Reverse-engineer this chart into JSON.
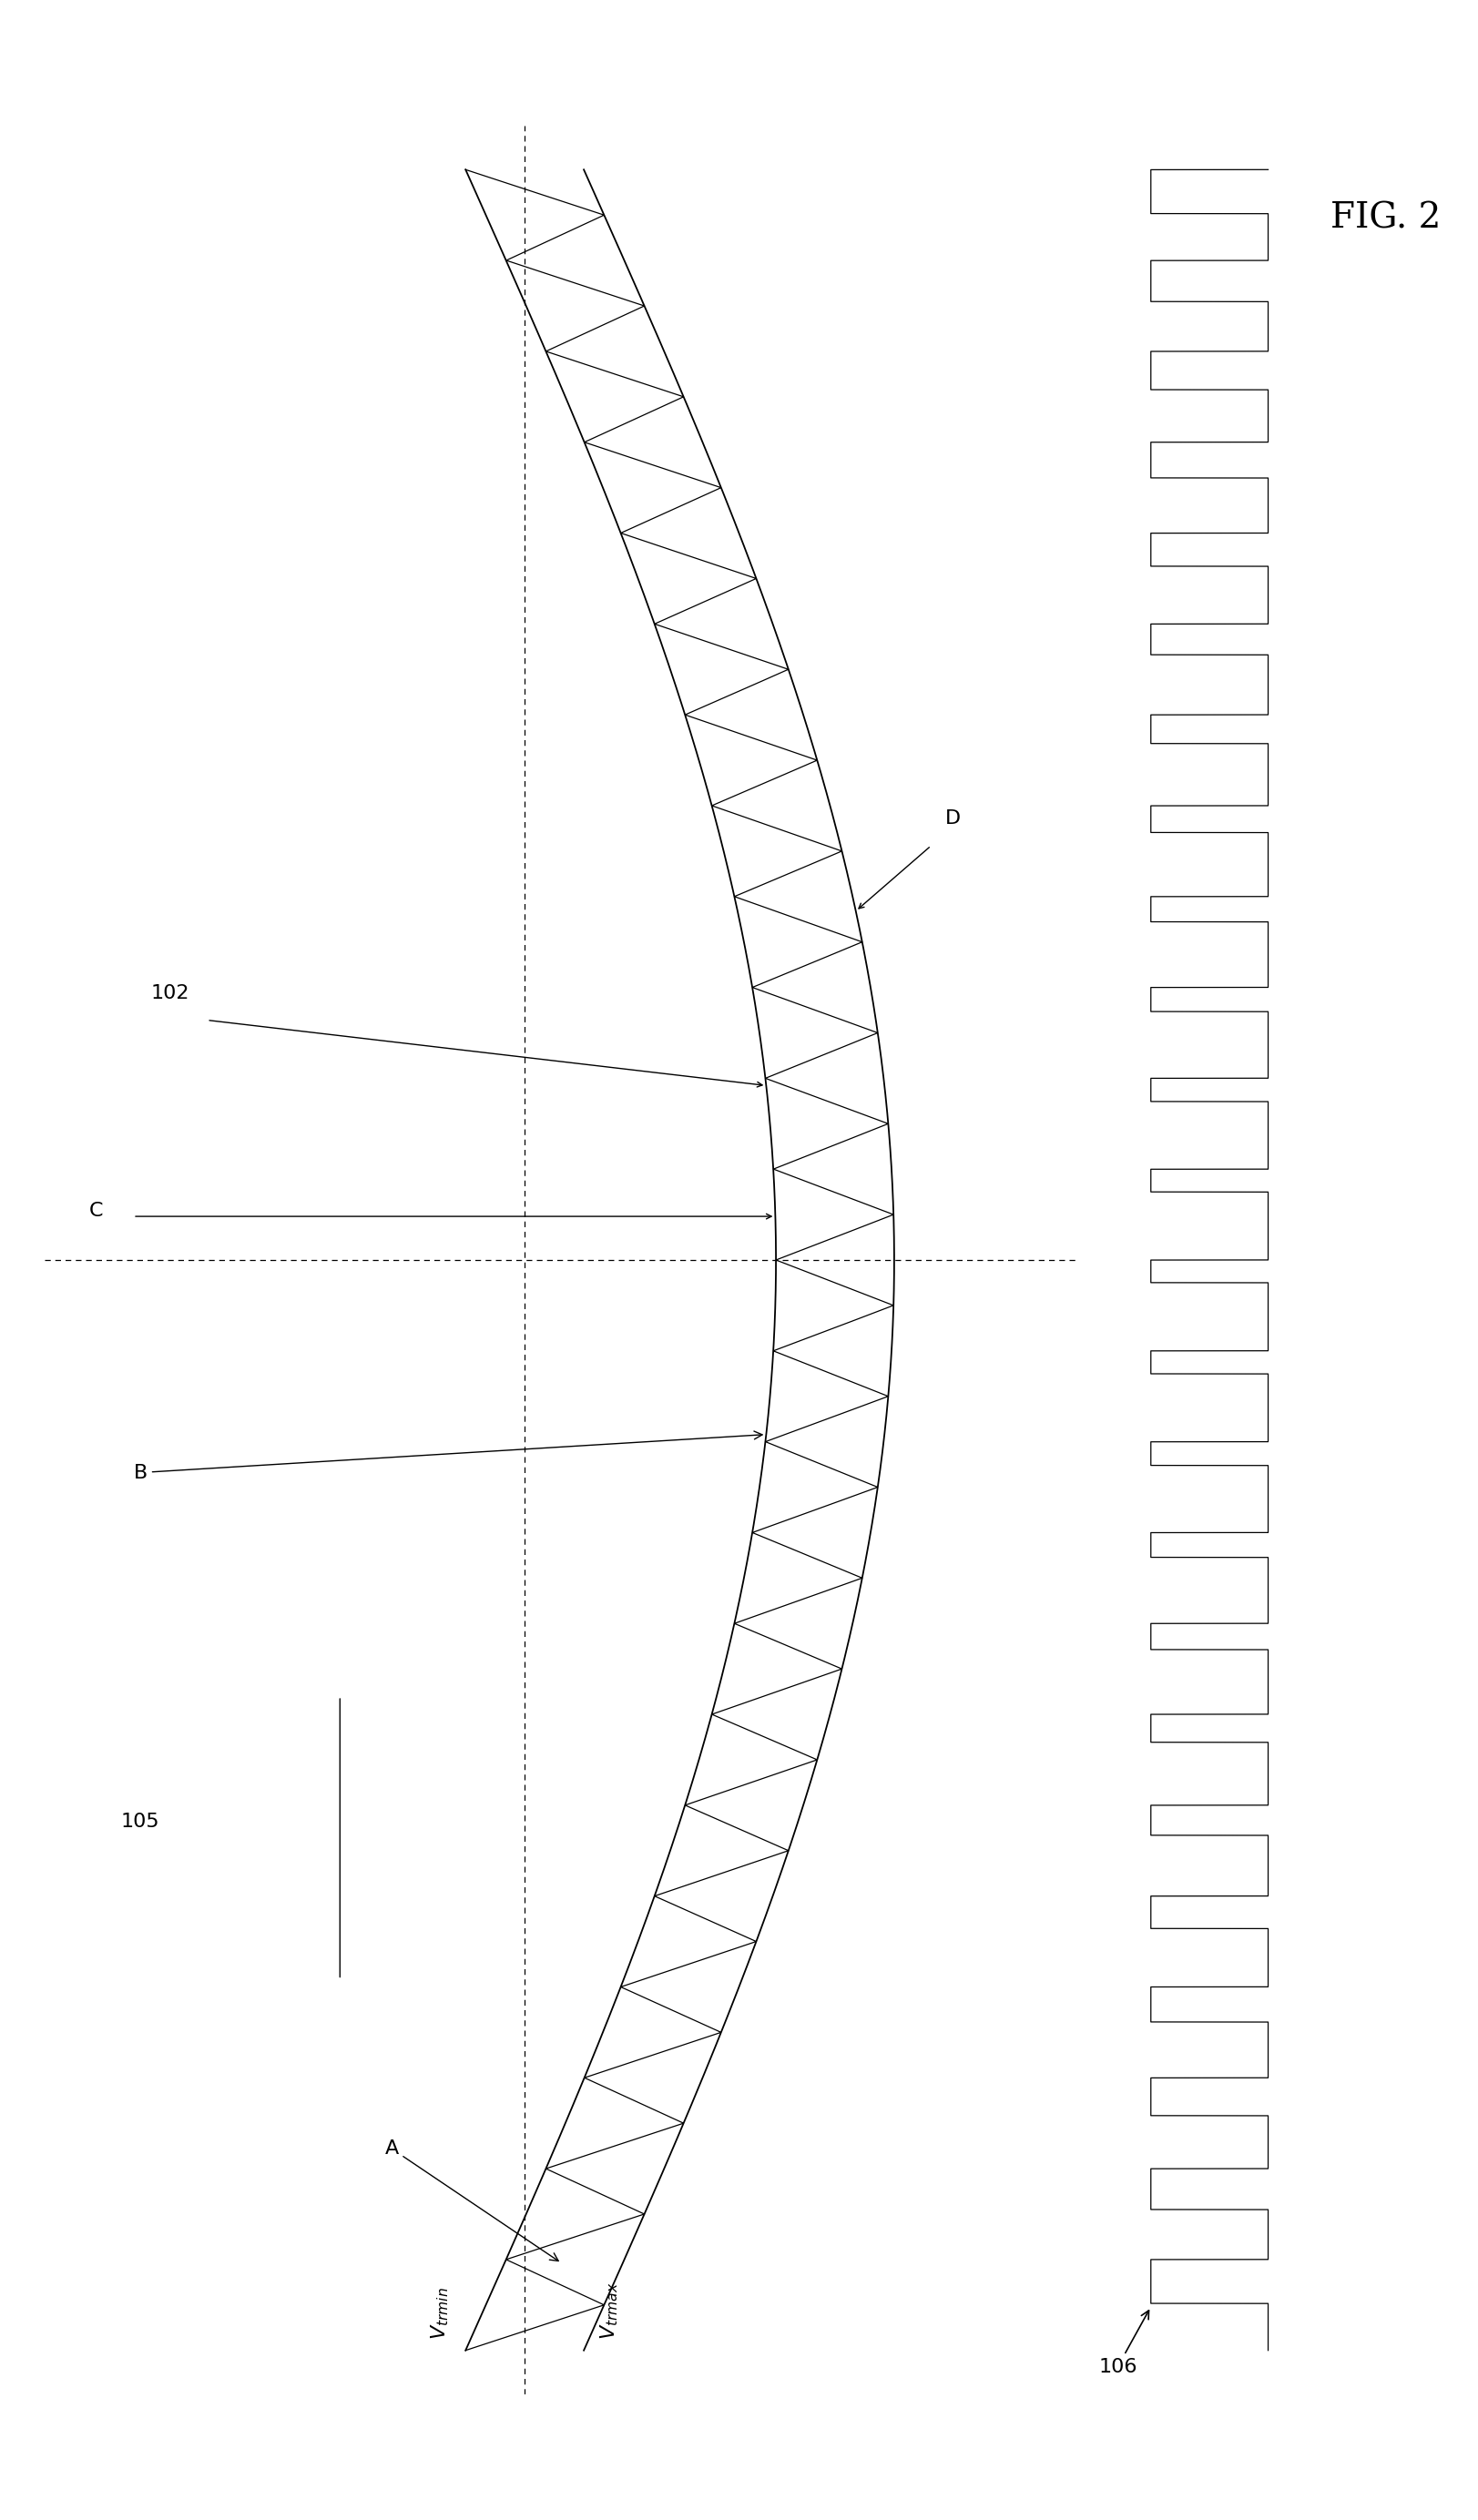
{
  "bg_color": "#ffffff",
  "line_color": "#000000",
  "fig2_text": "FIG. 2",
  "fig2_fontsize": 28,
  "label_fontsize": 16,
  "n_triangles": 24,
  "sine_amplitude": 0.42,
  "triangle_fixed_amp": 0.08,
  "vtrmax_label": "$V_{trmax}$",
  "vtrmin_label": "$V_{trmin}$",
  "label_A": "A",
  "label_B": "B",
  "label_C": "C",
  "label_D": "D",
  "label_102": "102",
  "label_105": "105",
  "label_106": "106"
}
